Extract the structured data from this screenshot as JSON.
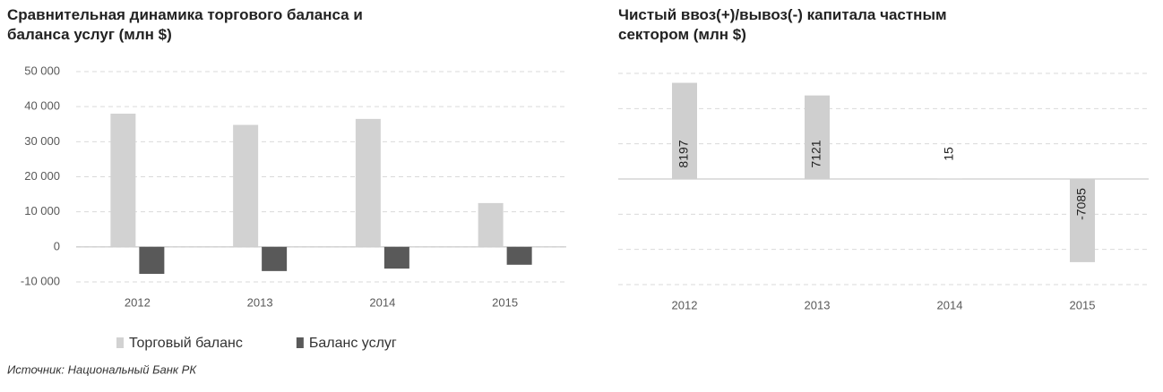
{
  "chart_data": [
    {
      "type": "bar",
      "title": "Сравнительная динамика торгового баланса и баланса услуг (млн $)",
      "categories": [
        "2012",
        "2013",
        "2014",
        "2015"
      ],
      "series": [
        {
          "name": "Торговый баланс",
          "color": "#d2d2d2",
          "values": [
            38000,
            34800,
            36500,
            12500
          ]
        },
        {
          "name": "Баланс услуг",
          "color": "#595959",
          "values": [
            -7700,
            -6900,
            -6200,
            -5100
          ]
        }
      ],
      "ylim": [
        -10000,
        50000
      ],
      "yticks": [
        {
          "value": -10000,
          "label": "-10 000"
        },
        0,
        {
          "value": 10000,
          "label": "10 000"
        },
        {
          "value": 20000,
          "label": "20 000"
        },
        {
          "value": 30000,
          "label": "30 000"
        },
        {
          "value": 40000,
          "label": "40 000"
        },
        {
          "value": 50000,
          "label": "50 000"
        }
      ],
      "grid": true,
      "legend": "bottom"
    },
    {
      "type": "bar",
      "title": "Чистый ввоз(+)/вывоз(-) капитала частным сектором (млн $)",
      "categories": [
        "2012",
        "2013",
        "2014",
        "2015"
      ],
      "values": [
        8197,
        7121,
        15,
        -7085
      ],
      "color": "#cfcfcf",
      "ylim": [
        -9000,
        9000
      ],
      "grid": true
    }
  ],
  "source": "Источник: Национальный Банк РК"
}
